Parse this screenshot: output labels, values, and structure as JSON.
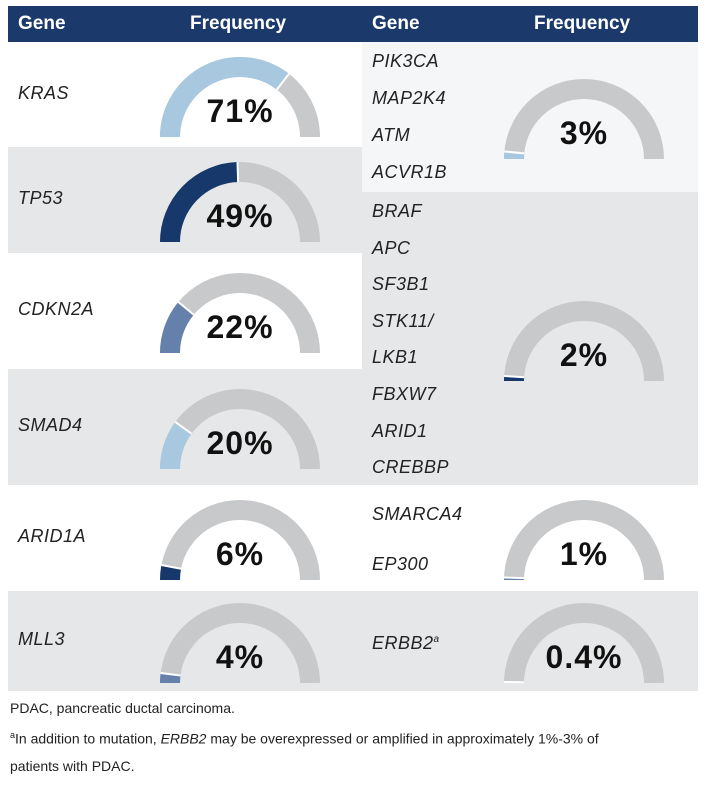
{
  "header": {
    "col1_gene": "Gene",
    "col1_freq": "Frequency",
    "col2_gene": "Gene",
    "col2_freq": "Frequency",
    "bg_color": "#1b3a6b"
  },
  "chart_data": {
    "type": "gauge",
    "left_column": [
      {
        "gene": "KRAS",
        "value": 71,
        "label": "71%",
        "color": "#a7c8df"
      },
      {
        "gene": "TP53",
        "value": 49,
        "label": "49%",
        "color": "#17386a"
      },
      {
        "gene": "CDKN2A",
        "value": 22,
        "label": "22%",
        "color": "#6580ab"
      },
      {
        "gene": "SMAD4",
        "value": 20,
        "label": "20%",
        "color": "#a7c8df"
      },
      {
        "gene": "ARID1A",
        "value": 6,
        "label": "6%",
        "color": "#17386a"
      },
      {
        "gene": "MLL3",
        "value": 4,
        "label": "4%",
        "color": "#6580ab"
      }
    ],
    "right_column": [
      {
        "genes": [
          "PIK3CA",
          "MAP2K4",
          "ATM",
          "ACVR1B"
        ],
        "value": 3,
        "label": "3%",
        "color": "#a7c8df"
      },
      {
        "genes": [
          "BRAF",
          "APC",
          "SF3B1",
          "STK11/",
          "LKB1",
          "FBXW7",
          "ARID1",
          "CREBBP"
        ],
        "value": 2,
        "label": "2%",
        "color": "#17386a"
      },
      {
        "genes": [
          "SMARCA4",
          "EP300"
        ],
        "value": 1,
        "label": "1%",
        "color": "#6580ab"
      },
      {
        "genes": [
          "ERBB2"
        ],
        "gene_footnote_mark": "a",
        "value": 0.4,
        "label": "0.4%",
        "color": "#6580ab"
      }
    ],
    "track_color": "#c8c9cb",
    "row_shading": [
      "#ffffff",
      "#e6e7e9"
    ]
  },
  "footer": {
    "abbrev": "PDAC, pancreatic ductal carcinoma.",
    "note_mark": "a",
    "note_pre": "In addition to mutation, ",
    "note_gene": "ERBB2",
    "note_post": " may be overexpressed or amplified in approximately 1%-3% of",
    "note_line2": "patients with PDAC."
  }
}
